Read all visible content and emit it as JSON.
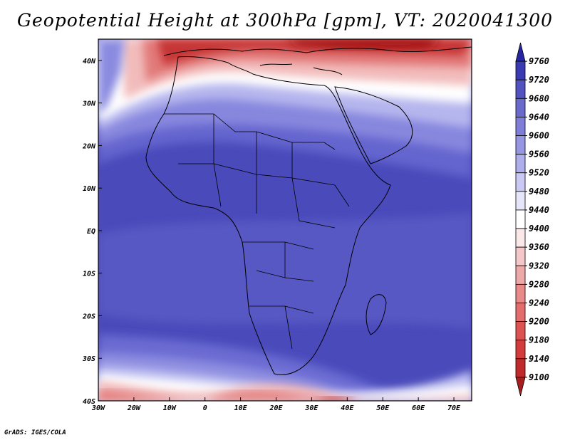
{
  "title": "Geopotential Height at 300hPa [gpm], VT: 2020041300",
  "credit": "GrADS: IGES/COLA",
  "map": {
    "lon_range": [
      -30,
      75
    ],
    "lat_range": [
      -40,
      45
    ],
    "lon_ticks": [
      {
        "value": -30,
        "label": "30W"
      },
      {
        "value": -20,
        "label": "20W"
      },
      {
        "value": -10,
        "label": "10W"
      },
      {
        "value": 0,
        "label": "0"
      },
      {
        "value": 10,
        "label": "10E"
      },
      {
        "value": 20,
        "label": "20E"
      },
      {
        "value": 30,
        "label": "30E"
      },
      {
        "value": 40,
        "label": "40E"
      },
      {
        "value": 50,
        "label": "50E"
      },
      {
        "value": 60,
        "label": "60E"
      },
      {
        "value": 70,
        "label": "70E"
      }
    ],
    "lat_ticks": [
      {
        "value": 40,
        "label": "40N"
      },
      {
        "value": 30,
        "label": "30N"
      },
      {
        "value": 20,
        "label": "20N"
      },
      {
        "value": 10,
        "label": "10N"
      },
      {
        "value": 0,
        "label": "EQ"
      },
      {
        "value": -10,
        "label": "10S"
      },
      {
        "value": -20,
        "label": "20S"
      },
      {
        "value": -30,
        "label": "30S"
      },
      {
        "value": -40,
        "label": "40S"
      }
    ]
  },
  "colorbar": {
    "labels": [
      "9100",
      "9140",
      "9180",
      "9200",
      "9240",
      "9280",
      "9320",
      "9360",
      "9400",
      "9440",
      "9480",
      "9520",
      "9560",
      "9600",
      "9640",
      "9680",
      "9720",
      "9760"
    ],
    "colors": [
      "#a81d1d",
      "#c02a2a",
      "#d43c3c",
      "#de5252",
      "#e36d6d",
      "#e88a8a",
      "#eda8a8",
      "#f4c8c8",
      "#fbe8e8",
      "#ffffff",
      "#e6e6fb",
      "#c9c9f3",
      "#aeaeec",
      "#9696e3",
      "#7e7ed8",
      "#6a6acd",
      "#5252c0",
      "#3a3ab2",
      "#2626a2"
    ]
  }
}
